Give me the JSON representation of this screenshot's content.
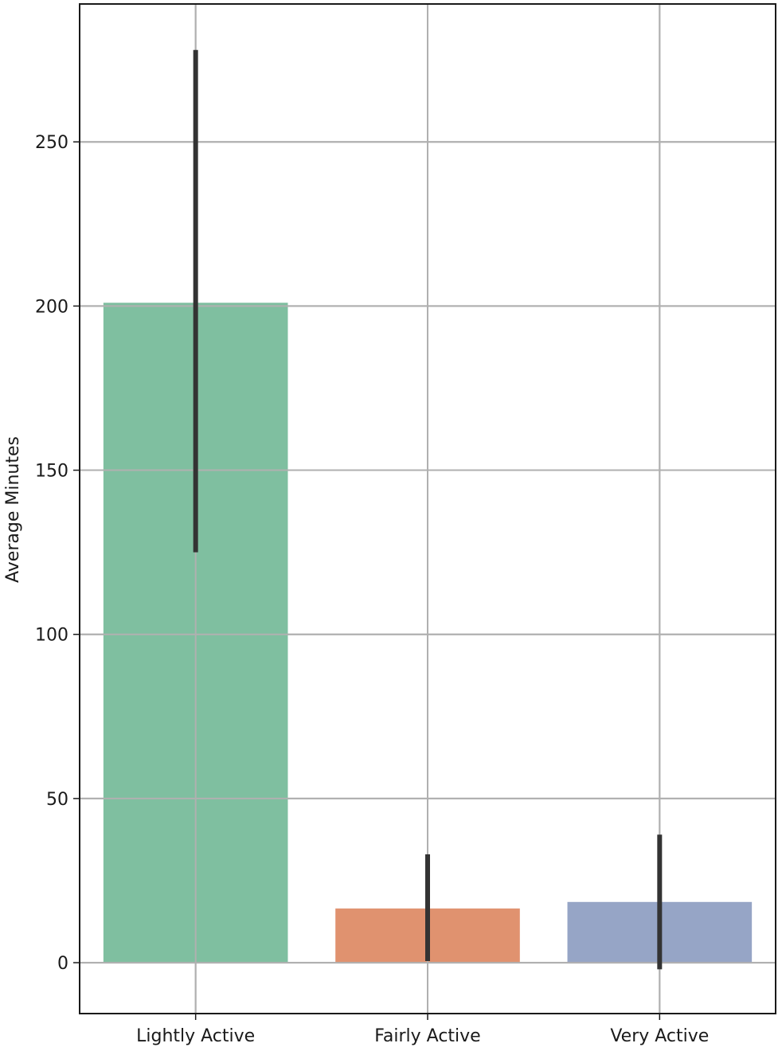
{
  "chart_data": {
    "type": "bar",
    "title": "",
    "xlabel": "",
    "ylabel": "Average Minutes",
    "categories": [
      "Lightly Active",
      "Fairly Active",
      "Very Active"
    ],
    "values": [
      201,
      16.5,
      18.5
    ],
    "error_low": [
      125,
      0.5,
      -2
    ],
    "error_high": [
      278,
      33,
      39
    ],
    "colors": [
      "#7fbfa0",
      "#e0926f",
      "#96a5c6"
    ],
    "error_color": "#333333",
    "yticks": [
      0,
      50,
      100,
      150,
      200,
      250
    ],
    "ylim": [
      -15.5,
      292
    ],
    "grid": true,
    "legend": "none"
  }
}
